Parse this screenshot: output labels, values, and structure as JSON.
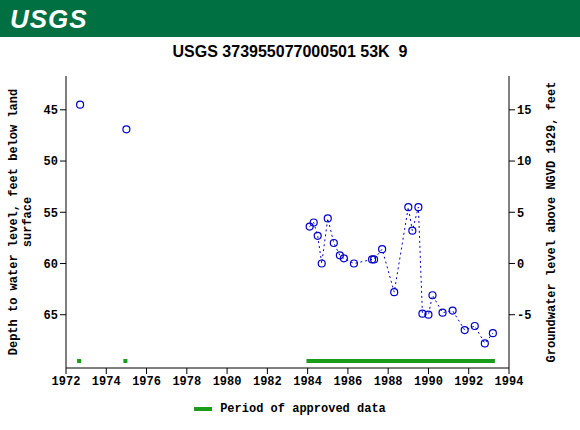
{
  "chart_data": {
    "type": "line",
    "banner_text": "USGS",
    "title": "USGS 373955077000501 53K  9",
    "y_label": "Depth to water level, feet below land surface",
    "y2_label": "Groundwater level above NGVD 1929, feet",
    "xlim": [
      1972,
      1994
    ],
    "xticks": [
      1972,
      1974,
      1976,
      1978,
      1980,
      1982,
      1984,
      1986,
      1988,
      1990,
      1992,
      1994
    ],
    "ylim": [
      41.7,
      70.2
    ],
    "yticks": [
      45,
      50,
      55,
      60,
      65
    ],
    "y2lim": [
      -10.2,
      18.3
    ],
    "y2ticks": [
      -5,
      0,
      5,
      10,
      15
    ],
    "series": [
      {
        "color": "#0000cc",
        "marker": "circle",
        "line_style": "none",
        "x": [
          1972.7,
          1975.0
        ],
        "values": [
          44.5,
          46.9
        ]
      },
      {
        "color": "#0000cc",
        "marker": "circle",
        "line_style": "dotted",
        "x": [
          1984.1,
          1984.3,
          1984.5,
          1984.7,
          1985.0,
          1985.3,
          1985.6,
          1985.8,
          1986.3,
          1987.2,
          1987.3,
          1987.7,
          1988.3,
          1989.0,
          1989.2,
          1989.5,
          1989.7,
          1990.0,
          1990.2,
          1990.7,
          1991.2,
          1991.8,
          1992.3,
          1992.8,
          1993.2
        ],
        "values": [
          56.4,
          56.0,
          57.3,
          60.0,
          55.6,
          58.0,
          59.2,
          59.5,
          60.0,
          59.6,
          59.6,
          58.6,
          62.8,
          54.5,
          56.8,
          54.5,
          64.9,
          65.0,
          63.1,
          64.8,
          64.6,
          66.5,
          66.1,
          67.8,
          66.8
        ]
      }
    ],
    "approved_periods": {
      "name": "Period of approved data",
      "color": "#1a9e1a",
      "ranges": [
        [
          1972.55,
          1972.75
        ],
        [
          1974.85,
          1975.05
        ],
        [
          1983.94,
          1993.3
        ]
      ]
    },
    "legend": "bottom"
  }
}
